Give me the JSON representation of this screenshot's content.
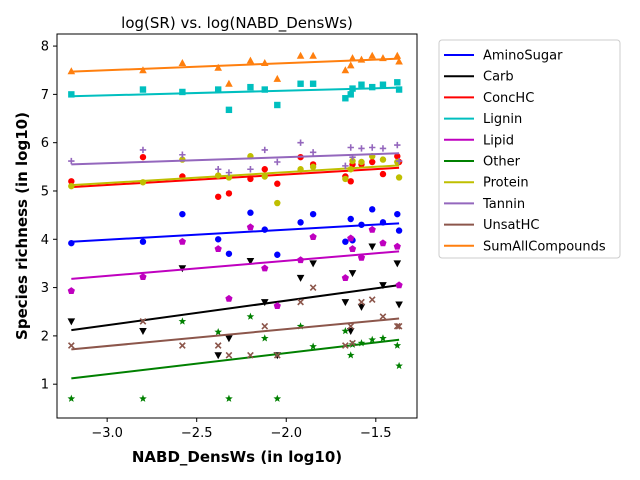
{
  "chart_data": {
    "type": "scatter",
    "title": "log(SR) vs. log(NABD_DensWs)",
    "xlabel": "NABD_DensWs (in log10)",
    "ylabel": "Species richness (in log10)",
    "xlim": [
      -3.28,
      -1.27
    ],
    "ylim": [
      0.3,
      8.25
    ],
    "xticks": [
      -3.0,
      -2.5,
      -2.0,
      -1.5
    ],
    "xtick_labels": [
      "−3.0",
      "−2.5",
      "−2.0",
      "−1.5"
    ],
    "yticks": [
      1,
      2,
      3,
      4,
      5,
      6,
      7,
      8
    ],
    "ytick_labels": [
      "1",
      "2",
      "3",
      "4",
      "5",
      "6",
      "7",
      "8"
    ],
    "legend_position": "outside-right",
    "grid": false,
    "x": [
      -3.2,
      -2.8,
      -2.58,
      -2.38,
      -2.32,
      -2.2,
      -2.12,
      -2.05,
      -1.92,
      -1.85,
      -1.67,
      -1.64,
      -1.63,
      -1.58,
      -1.52,
      -1.46,
      -1.38,
      -1.37
    ],
    "series": [
      {
        "name": "AminoSugar",
        "color": "#0000ff",
        "marker": "circle",
        "y": [
          3.92,
          3.95,
          4.52,
          4.0,
          3.7,
          4.55,
          4.2,
          3.68,
          4.35,
          4.52,
          3.95,
          4.42,
          3.98,
          4.3,
          4.62,
          4.35,
          4.52,
          4.18
        ],
        "fit": [
          3.95,
          4.33
        ]
      },
      {
        "name": "Carb",
        "color": "#000000",
        "marker": "triangle-down",
        "y": [
          2.3,
          2.1,
          3.4,
          1.6,
          1.95,
          3.55,
          2.7,
          1.6,
          3.2,
          3.5,
          2.7,
          2.1,
          3.3,
          2.6,
          3.85,
          3.05,
          3.5,
          2.65
        ],
        "fit": [
          2.12,
          3.05
        ]
      },
      {
        "name": "ConcHC",
        "color": "#ff0000",
        "marker": "circle",
        "y": [
          5.2,
          5.7,
          5.3,
          4.88,
          4.95,
          5.25,
          5.45,
          5.15,
          5.7,
          5.55,
          5.3,
          5.2,
          5.55,
          5.55,
          5.6,
          5.35,
          5.72,
          5.6
        ],
        "fit": [
          5.08,
          5.48
        ]
      },
      {
        "name": "Lignin",
        "color": "#00bfbf",
        "marker": "square",
        "y": [
          7.0,
          7.1,
          7.05,
          7.1,
          6.68,
          7.15,
          7.1,
          6.78,
          7.22,
          7.22,
          6.92,
          7.0,
          7.12,
          7.2,
          7.15,
          7.2,
          7.25,
          7.1
        ],
        "fit": [
          6.96,
          7.14
        ]
      },
      {
        "name": "Lipid",
        "color": "#bf00bf",
        "marker": "pentagon",
        "y": [
          2.93,
          3.22,
          3.95,
          3.8,
          2.77,
          4.25,
          3.4,
          2.62,
          3.57,
          4.05,
          3.2,
          4.02,
          3.8,
          3.62,
          4.2,
          3.92,
          3.85,
          3.05
        ],
        "fit": [
          3.18,
          3.75
        ]
      },
      {
        "name": "Other",
        "color": "#008000",
        "marker": "star",
        "y": [
          0.7,
          0.7,
          2.3,
          2.08,
          0.7,
          2.4,
          1.95,
          0.7,
          2.2,
          1.78,
          2.1,
          1.6,
          1.82,
          1.85,
          1.92,
          1.95,
          1.8,
          1.38
        ],
        "fit": [
          1.12,
          1.92
        ]
      },
      {
        "name": "Protein",
        "color": "#bfbf00",
        "marker": "circle",
        "y": [
          5.1,
          5.18,
          5.65,
          5.32,
          5.28,
          5.72,
          5.3,
          4.75,
          5.45,
          5.5,
          5.25,
          5.45,
          5.62,
          5.6,
          5.72,
          5.65,
          5.6,
          5.28
        ],
        "fit": [
          5.12,
          5.53
        ]
      },
      {
        "name": "Tannin",
        "color": "#9467bd",
        "marker": "plus",
        "y": [
          5.62,
          5.85,
          5.75,
          5.45,
          5.38,
          5.45,
          5.85,
          5.6,
          6.0,
          5.8,
          5.52,
          5.9,
          5.7,
          5.88,
          5.9,
          5.88,
          5.95,
          5.62
        ],
        "fit": [
          5.55,
          5.78
        ]
      },
      {
        "name": "UnsatHC",
        "color": "#8c564b",
        "marker": "x",
        "y": [
          1.8,
          2.3,
          1.8,
          1.8,
          1.6,
          1.6,
          2.2,
          1.6,
          2.7,
          3.0,
          1.8,
          2.2,
          1.85,
          2.7,
          2.75,
          2.4,
          2.2,
          2.2
        ],
        "fit": [
          1.72,
          2.36
        ]
      },
      {
        "name": "SumAllCompounds",
        "color": "#ff7f0e",
        "marker": "triangle-up",
        "y": [
          7.48,
          7.5,
          7.65,
          7.55,
          7.22,
          7.7,
          7.65,
          7.32,
          7.8,
          7.8,
          7.5,
          7.6,
          7.75,
          7.72,
          7.8,
          7.75,
          7.8,
          7.68
        ],
        "fit": [
          7.47,
          7.74
        ]
      }
    ]
  }
}
